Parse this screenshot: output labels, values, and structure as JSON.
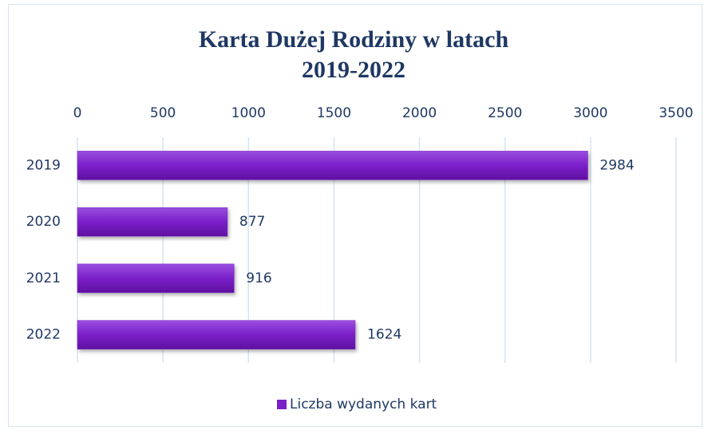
{
  "chart_data": {
    "type": "barh",
    "title": [
      "Karta Dużej Rodziny w latach",
      "2019-2022"
    ],
    "categories": [
      "2019",
      "2020",
      "2021",
      "2022"
    ],
    "series": [
      {
        "name": "Liczba wydanych kart",
        "color": "#7b1fc9",
        "values": [
          2984,
          877,
          916,
          1624
        ]
      }
    ],
    "xlim": [
      0,
      3500
    ],
    "xticks": [
      0,
      500,
      1000,
      1500,
      2000,
      2500,
      3000,
      3500
    ],
    "grid": true,
    "legend": "bottom",
    "data_labels": true
  }
}
